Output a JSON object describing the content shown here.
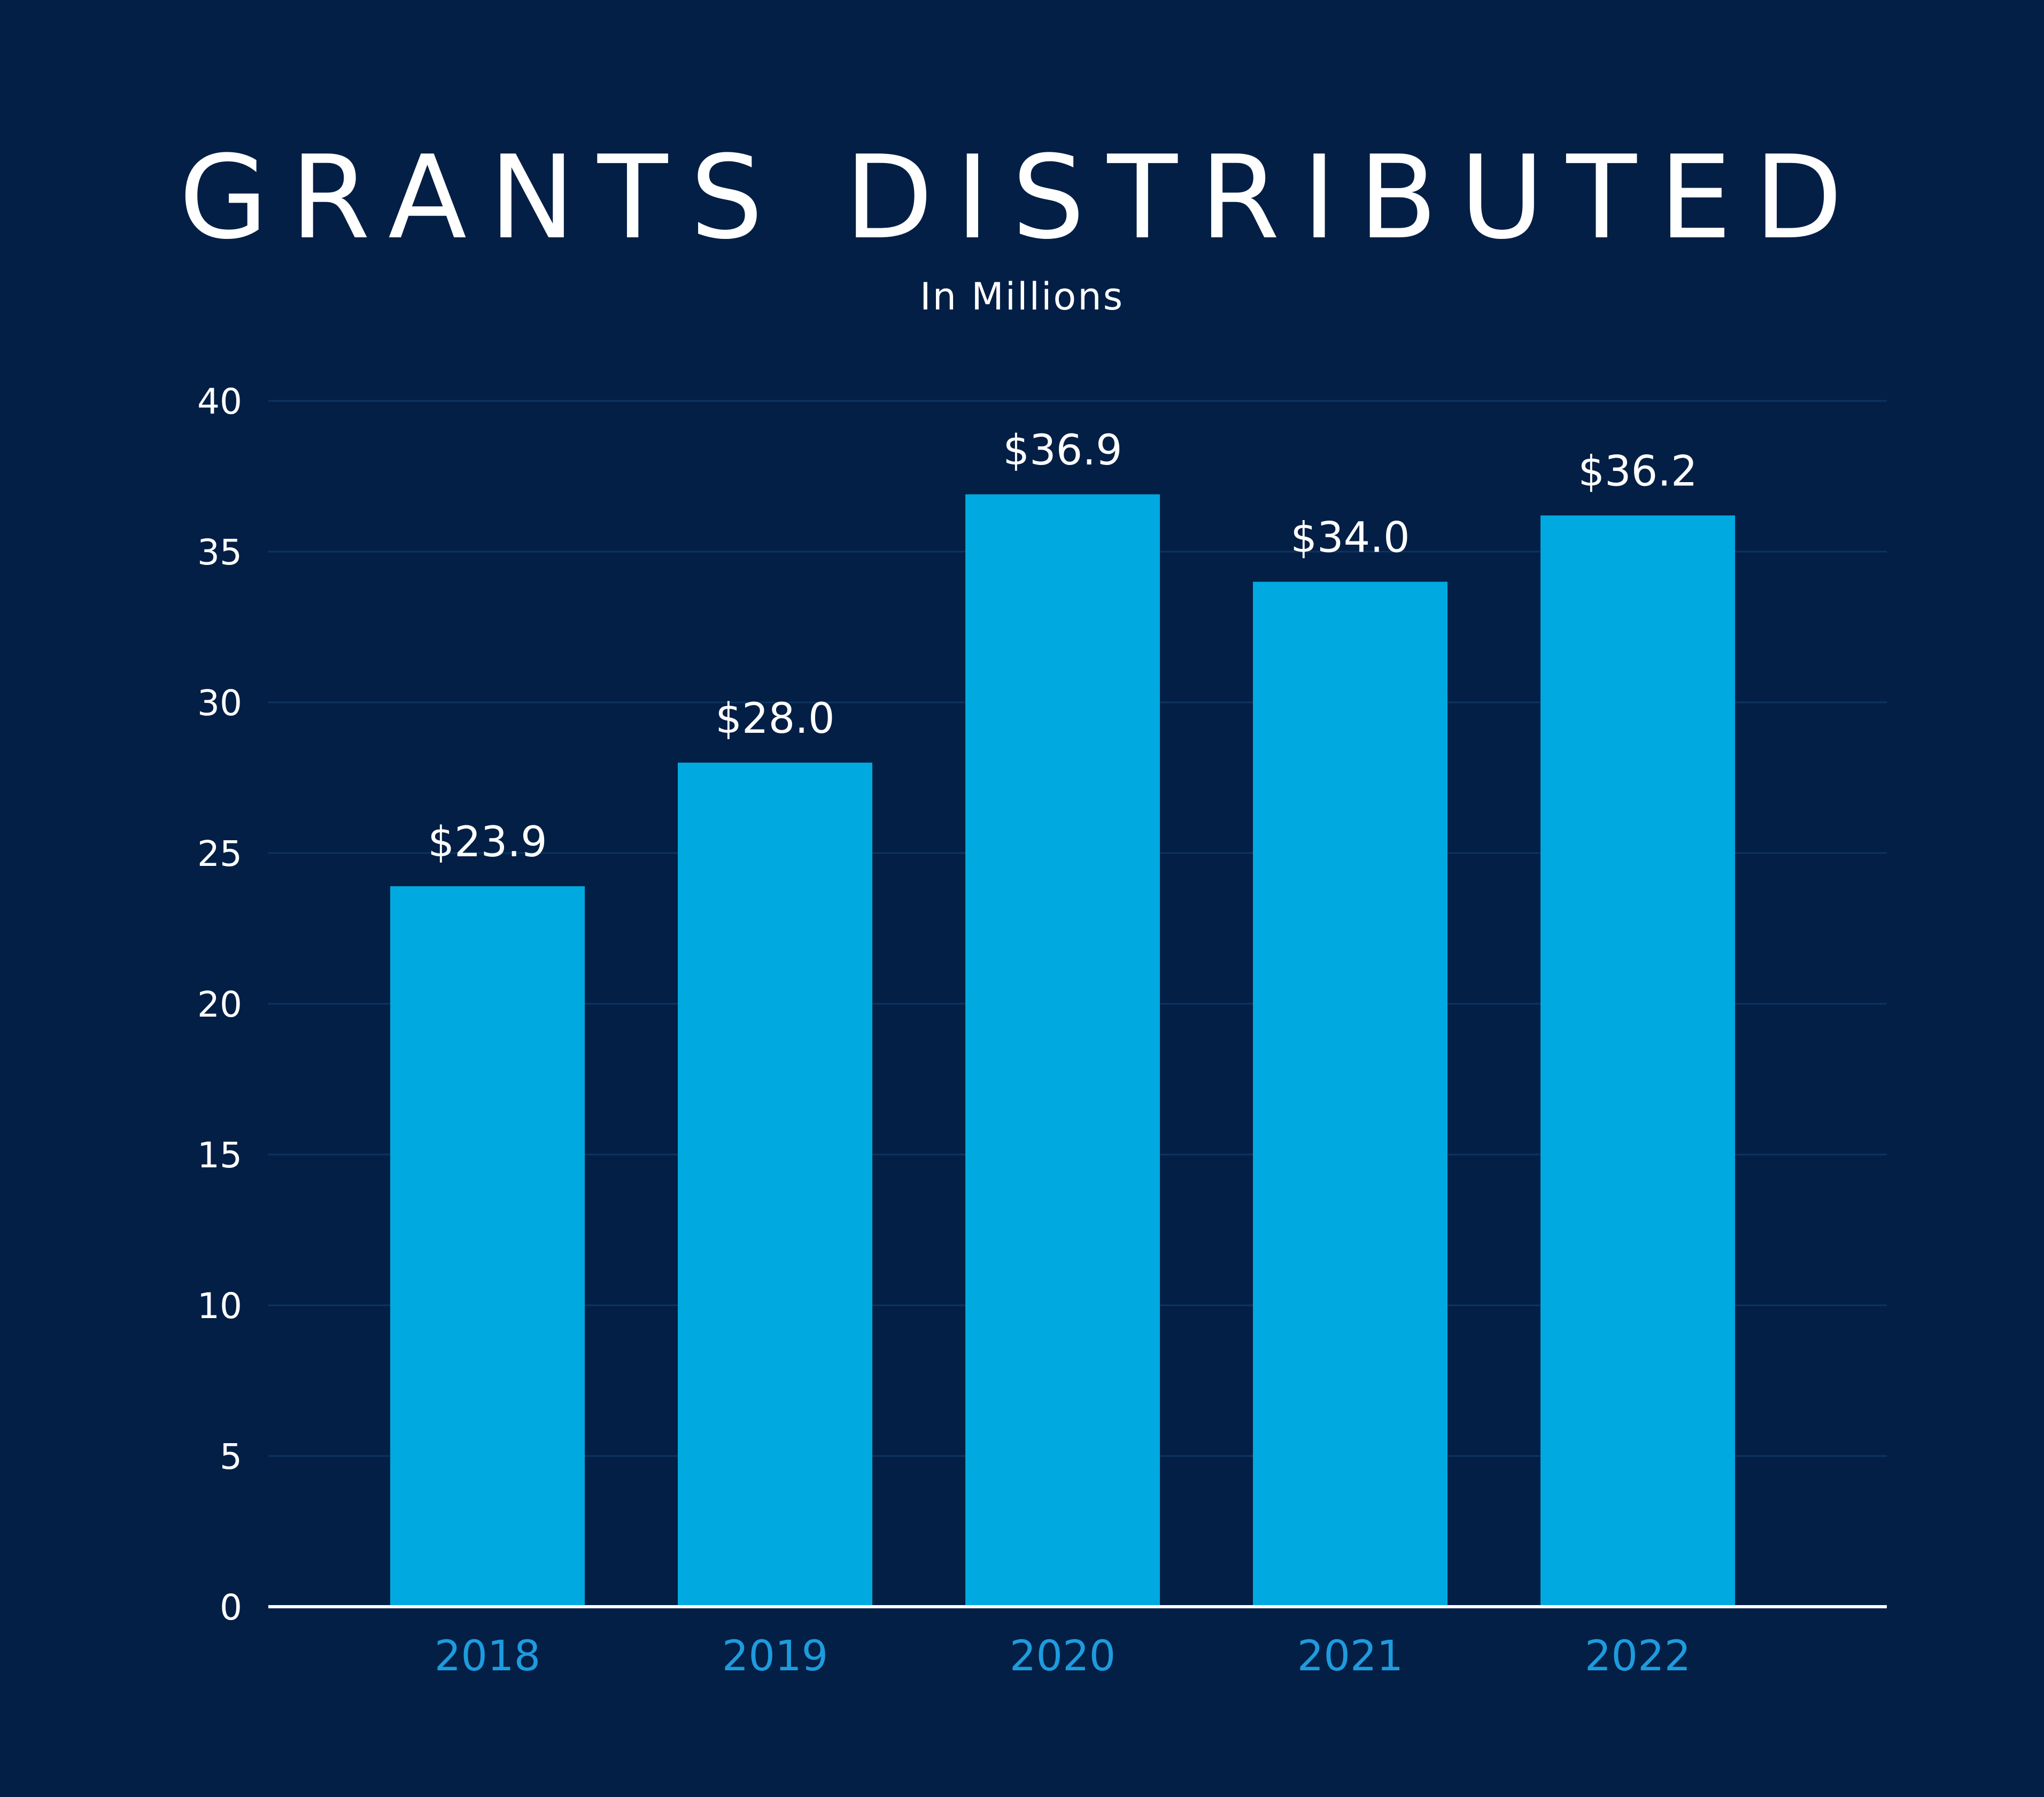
{
  "chart_data": {
    "type": "bar",
    "title": "GRANTS DISTRIBUTED",
    "subtitle": "In Millions",
    "categories": [
      "2018",
      "2019",
      "2020",
      "2021",
      "2022"
    ],
    "values": [
      23.9,
      28.0,
      36.9,
      34.0,
      36.2
    ],
    "data_labels": [
      "$23.9",
      "$28.0",
      "$36.9",
      "$34.0",
      "$36.2"
    ],
    "y_ticks": [
      "0",
      "5",
      "10",
      "15",
      "20",
      "25",
      "30",
      "35",
      "40"
    ],
    "ylim": [
      0,
      40
    ],
    "grid": true,
    "legend": "none"
  },
  "colors": {
    "background": "#041F45",
    "bar": "#00A9E0",
    "x_label": "#1E9BDE",
    "gridline": "#0B3560",
    "baseline": "#FFFFFF",
    "text": "#FFFFFF"
  }
}
